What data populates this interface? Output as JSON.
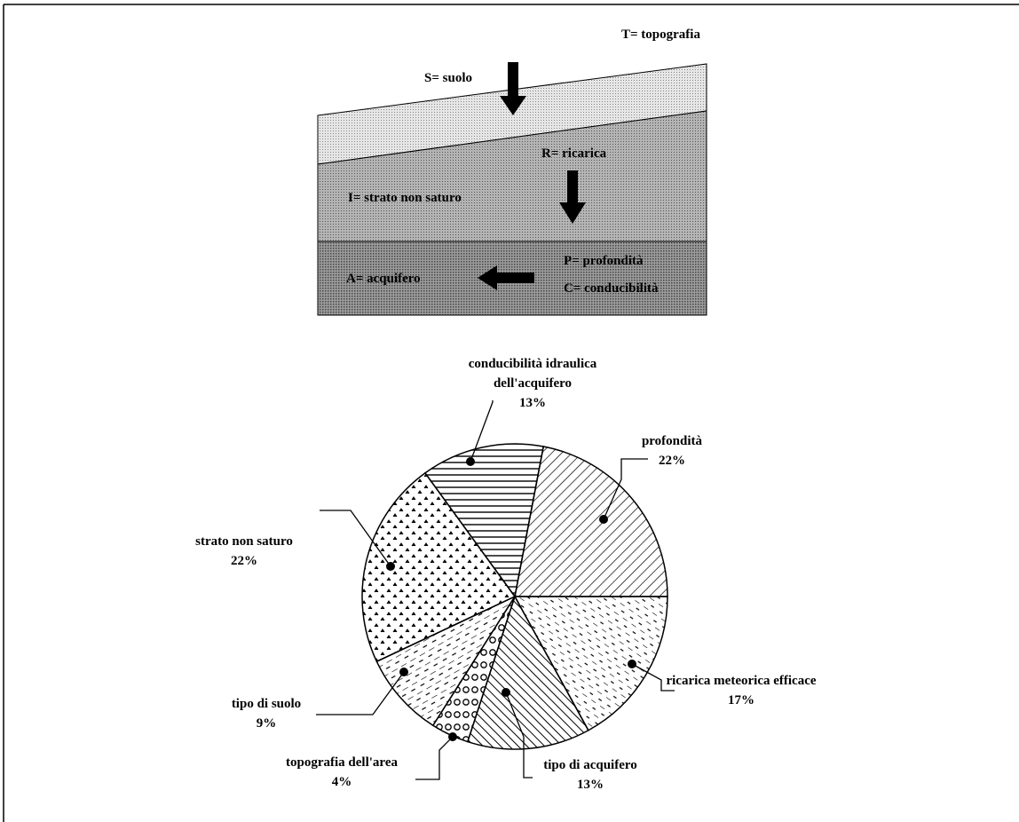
{
  "diagram": {
    "topografia": "T= topografia",
    "suolo": "S= suolo",
    "ricarica": "R= ricarica",
    "strato": "I= strato non saturo",
    "profondita": "P= profondità",
    "conducibilita": "C= conducibilità",
    "acquifero": "A= acquifero"
  },
  "chart_data": {
    "type": "pie",
    "categories": [
      "profondità",
      "ricarica meteorica efficace",
      "tipo di acquifero",
      "topografia dell'area",
      "tipo di suolo",
      "strato non saturo",
      "conducibilità idraulica dell'acquifero"
    ],
    "values": [
      22,
      17,
      13,
      4,
      9,
      22,
      13
    ],
    "value_labels": [
      "22%",
      "17%",
      "13%",
      "4%",
      "9%",
      "22%",
      "13%"
    ]
  }
}
